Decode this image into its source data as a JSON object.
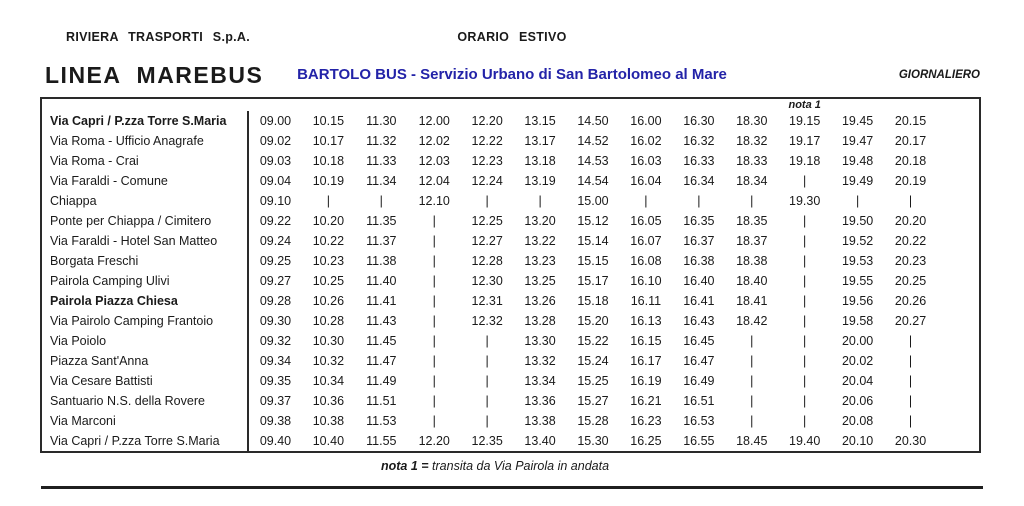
{
  "header": {
    "company": "RIVIERA TRASPORTI S.p.A.",
    "schedule_season": "ORARIO ESTIVO",
    "line_name": "LINEA MAREBUS",
    "route_title": "BARTOLO BUS - Servizio Urbano di San Bartolomeo al Mare",
    "frequency": "GIORNALIERO"
  },
  "colors": {
    "route_title_blue": "#2323A8",
    "text_black": "#1a1a1a"
  },
  "table": {
    "note_header": "nota 1",
    "note_header_column": 11,
    "num_trips": 13,
    "rows": [
      {
        "stop": "Via Capri / P.zza Torre S.Maria",
        "bold": true,
        "times": [
          "09.00",
          "10.15",
          "11.30",
          "12.00",
          "12.20",
          "13.15",
          "14.50",
          "16.00",
          "16.30",
          "18.30",
          "19.15",
          "19.45",
          "20.15"
        ]
      },
      {
        "stop": "Via Roma - Ufficio Anagrafe",
        "bold": false,
        "times": [
          "09.02",
          "10.17",
          "11.32",
          "12.02",
          "12.22",
          "13.17",
          "14.52",
          "16.02",
          "16.32",
          "18.32",
          "19.17",
          "19.47",
          "20.17"
        ]
      },
      {
        "stop": "Via Roma - Crai",
        "bold": false,
        "times": [
          "09.03",
          "10.18",
          "11.33",
          "12.03",
          "12.23",
          "13.18",
          "14.53",
          "16.03",
          "16.33",
          "18.33",
          "19.18",
          "19.48",
          "20.18"
        ]
      },
      {
        "stop": "Via Faraldi - Comune",
        "bold": false,
        "times": [
          "09.04",
          "10.19",
          "11.34",
          "12.04",
          "12.24",
          "13.19",
          "14.54",
          "16.04",
          "16.34",
          "18.34",
          "|",
          "19.49",
          "20.19"
        ]
      },
      {
        "stop": "Chiappa",
        "bold": false,
        "times": [
          "09.10",
          "|",
          "|",
          "12.10",
          "|",
          "|",
          "15.00",
          "|",
          "|",
          "|",
          "19.30",
          "|",
          "|"
        ]
      },
      {
        "stop": "Ponte per Chiappa / Cimitero",
        "bold": false,
        "times": [
          "09.22",
          "10.20",
          "11.35",
          "|",
          "12.25",
          "13.20",
          "15.12",
          "16.05",
          "16.35",
          "18.35",
          "|",
          "19.50",
          "20.20"
        ]
      },
      {
        "stop": "Via Faraldi - Hotel San Matteo",
        "bold": false,
        "times": [
          "09.24",
          "10.22",
          "11.37",
          "|",
          "12.27",
          "13.22",
          "15.14",
          "16.07",
          "16.37",
          "18.37",
          "|",
          "19.52",
          "20.22"
        ]
      },
      {
        "stop": "Borgata Freschi",
        "bold": false,
        "times": [
          "09.25",
          "10.23",
          "11.38",
          "|",
          "12.28",
          "13.23",
          "15.15",
          "16.08",
          "16.38",
          "18.38",
          "|",
          "19.53",
          "20.23"
        ]
      },
      {
        "stop": "Pairola Camping Ulivi",
        "bold": false,
        "times": [
          "09.27",
          "10.25",
          "11.40",
          "|",
          "12.30",
          "13.25",
          "15.17",
          "16.10",
          "16.40",
          "18.40",
          "|",
          "19.55",
          "20.25"
        ]
      },
      {
        "stop": "Pairola Piazza Chiesa",
        "bold": true,
        "times": [
          "09.28",
          "10.26",
          "11.41",
          "|",
          "12.31",
          "13.26",
          "15.18",
          "16.11",
          "16.41",
          "18.41",
          "|",
          "19.56",
          "20.26"
        ]
      },
      {
        "stop": "Via Pairolo Camping Frantoio",
        "bold": false,
        "times": [
          "09.30",
          "10.28",
          "11.43",
          "|",
          "12.32",
          "13.28",
          "15.20",
          "16.13",
          "16.43",
          "18.42",
          "|",
          "19.58",
          "20.27"
        ]
      },
      {
        "stop": "Via Poiolo",
        "bold": false,
        "times": [
          "09.32",
          "10.30",
          "11.45",
          "|",
          "|",
          "13.30",
          "15.22",
          "16.15",
          "16.45",
          "|",
          "|",
          "20.00",
          "|"
        ]
      },
      {
        "stop": "Piazza Sant'Anna",
        "bold": false,
        "times": [
          "09.34",
          "10.32",
          "11.47",
          "|",
          "|",
          "13.32",
          "15.24",
          "16.17",
          "16.47",
          "|",
          "|",
          "20.02",
          "|"
        ]
      },
      {
        "stop": "Via Cesare Battisti",
        "bold": false,
        "times": [
          "09.35",
          "10.34",
          "11.49",
          "|",
          "|",
          "13.34",
          "15.25",
          "16.19",
          "16.49",
          "|",
          "|",
          "20.04",
          "|"
        ]
      },
      {
        "stop": "Santuario N.S. della Rovere",
        "bold": false,
        "times": [
          "09.37",
          "10.36",
          "11.51",
          "|",
          "|",
          "13.36",
          "15.27",
          "16.21",
          "16.51",
          "|",
          "|",
          "20.06",
          "|"
        ]
      },
      {
        "stop": "Via Marconi",
        "bold": false,
        "times": [
          "09.38",
          "10.38",
          "11.53",
          "|",
          "|",
          "13.38",
          "15.28",
          "16.23",
          "16.53",
          "|",
          "|",
          "20.08",
          "|"
        ]
      },
      {
        "stop": "Via Capri / P.zza Torre S.Maria",
        "bold": false,
        "times": [
          "09.40",
          "10.40",
          "11.55",
          "12.20",
          "12.35",
          "13.40",
          "15.30",
          "16.25",
          "16.55",
          "18.45",
          "19.40",
          "20.10",
          "20.30"
        ]
      }
    ]
  },
  "footer": {
    "note_label": "nota 1 =",
    "note_text": "transita da Via Pairola in andata"
  }
}
